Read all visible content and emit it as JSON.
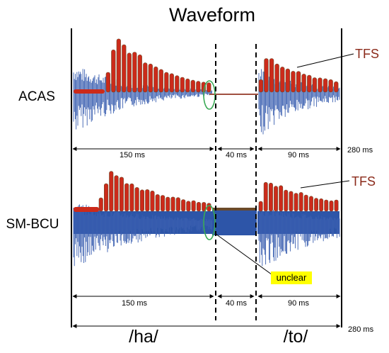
{
  "title": "Waveform",
  "tracks": [
    {
      "label": "ACAS",
      "tfs_label": "TFS"
    },
    {
      "label": "SM-BCU",
      "tfs_label": "TFS",
      "callout": "unclear"
    }
  ],
  "durations": {
    "ha": "150 ms",
    "gap": "40 ms",
    "to": "90 ms",
    "total": "280 ms"
  },
  "phonemes": {
    "ha": "/ha/",
    "to": "/to/"
  },
  "colors": {
    "envelope": "#cc2a1a",
    "envelope_dark": "#6b4a2a",
    "waveform": "#3a5fb0",
    "band": "#2d55a8",
    "ellipse": "#3aaa55",
    "callout_bg": "#ffff00"
  }
}
